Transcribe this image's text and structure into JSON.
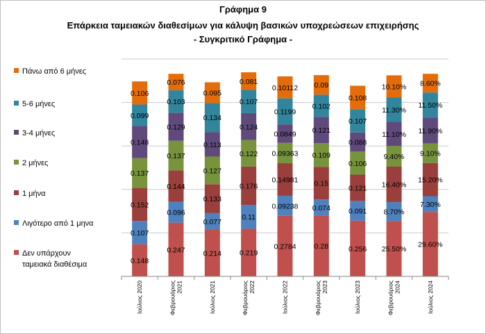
{
  "chart_data": {
    "type": "bar",
    "stacked": true,
    "title": [
      "Γράφημα 9",
      "Επάρκεια ταμειακών διαθεσίμων για κάλυψη βασικών υποχρεώσεων επιχειρήσης",
      "- Συγκριτικό Γράφημα -"
    ],
    "categories": [
      [
        "Ιούλιος 2020"
      ],
      [
        "Φεβρουάριος",
        "2021"
      ],
      [
        "Ιούλιος 2021"
      ],
      [
        "Φεβρουάριος",
        "2022"
      ],
      [
        "Ιούλιος 2022"
      ],
      [
        "Φεβρουάριος",
        "2023"
      ],
      [
        "Ιούλιος 2023"
      ],
      [
        "Φεβρουάριος",
        "2024"
      ],
      [
        "Ιούλιος 2024"
      ]
    ],
    "legend_position": "left",
    "ylim": [
      0,
      1
    ],
    "grid": true,
    "series": [
      {
        "name": [
          "Δεν υπάρχουν",
          "ταμειακά διαθέσιμα"
        ],
        "color": "#C0504D",
        "values": [
          0.148,
          0.247,
          0.214,
          0.219,
          0.2784,
          0.28,
          0.256,
          0.255,
          0.296
        ],
        "labels": [
          "0.148",
          "0.247",
          "0.214",
          "0.219",
          "0.2784",
          "0.28",
          "0.256",
          "25.50%",
          "29.60%"
        ]
      },
      {
        "name": [
          "Λιγότερο από 1 μηνα"
        ],
        "color": "#4F81BD",
        "values": [
          0.107,
          0.096,
          0.077,
          0.11,
          0.09238,
          0.074,
          0.091,
          0.087,
          0.073
        ],
        "labels": [
          "0.107",
          "0.096",
          "0.077",
          "0.11",
          "0.09238",
          "0.074",
          "0.091",
          "8.70%",
          "7.30%"
        ]
      },
      {
        "name": [
          "1 μήνα"
        ],
        "color": "#9B3F3D",
        "values": [
          0.152,
          0.144,
          0.133,
          0.176,
          0.14981,
          0.15,
          0.121,
          0.164,
          0.152
        ],
        "labels": [
          "0.152",
          "0.144",
          "0.133",
          "0.176",
          "0.14981",
          "0.15",
          "0.121",
          "16.40%",
          "15.20%"
        ]
      },
      {
        "name": [
          "2 μήνες"
        ],
        "color": "#77933C",
        "values": [
          0.137,
          0.137,
          0.127,
          0.122,
          0.09363,
          0.109,
          0.106,
          0.094,
          0.091
        ],
        "labels": [
          "0.137",
          "0.137",
          "0.127",
          "0.122",
          "0.09363",
          "0.109",
          "0.106",
          "9.40%",
          "9.10%"
        ]
      },
      {
        "name": [
          "3-4 μήνες"
        ],
        "color": "#604A7B",
        "values": [
          0.148,
          0.129,
          0.113,
          0.124,
          0.0849,
          0.121,
          0.088,
          0.111,
          0.119
        ],
        "labels": [
          "0.148",
          "0.129",
          "0.113",
          "0.124",
          "0.0849",
          "0.121",
          "0.088",
          "11.10%",
          "11.90%"
        ]
      },
      {
        "name": [
          "5-6 μήνες"
        ],
        "color": "#31859C",
        "values": [
          0.099,
          0.103,
          0.134,
          0.107,
          0.1199,
          0.102,
          0.107,
          0.113,
          0.115
        ],
        "labels": [
          "0.099",
          "0.103",
          "0.134",
          "0.107",
          "0.1199",
          "0.102",
          "0.107",
          "11.30%",
          "11.50%"
        ]
      },
      {
        "name": [
          "Πάνω από 6 μήνες"
        ],
        "color": "#E46C0A",
        "values": [
          0.106,
          0.076,
          0.095,
          0.081,
          0.10112,
          0.09,
          0.108,
          0.101,
          0.086
        ],
        "labels": [
          "0.106",
          "0.076",
          "0.095",
          "0.081",
          "0.10112",
          "0.09",
          "0.108",
          "10.10%",
          "8.60%"
        ]
      }
    ]
  }
}
